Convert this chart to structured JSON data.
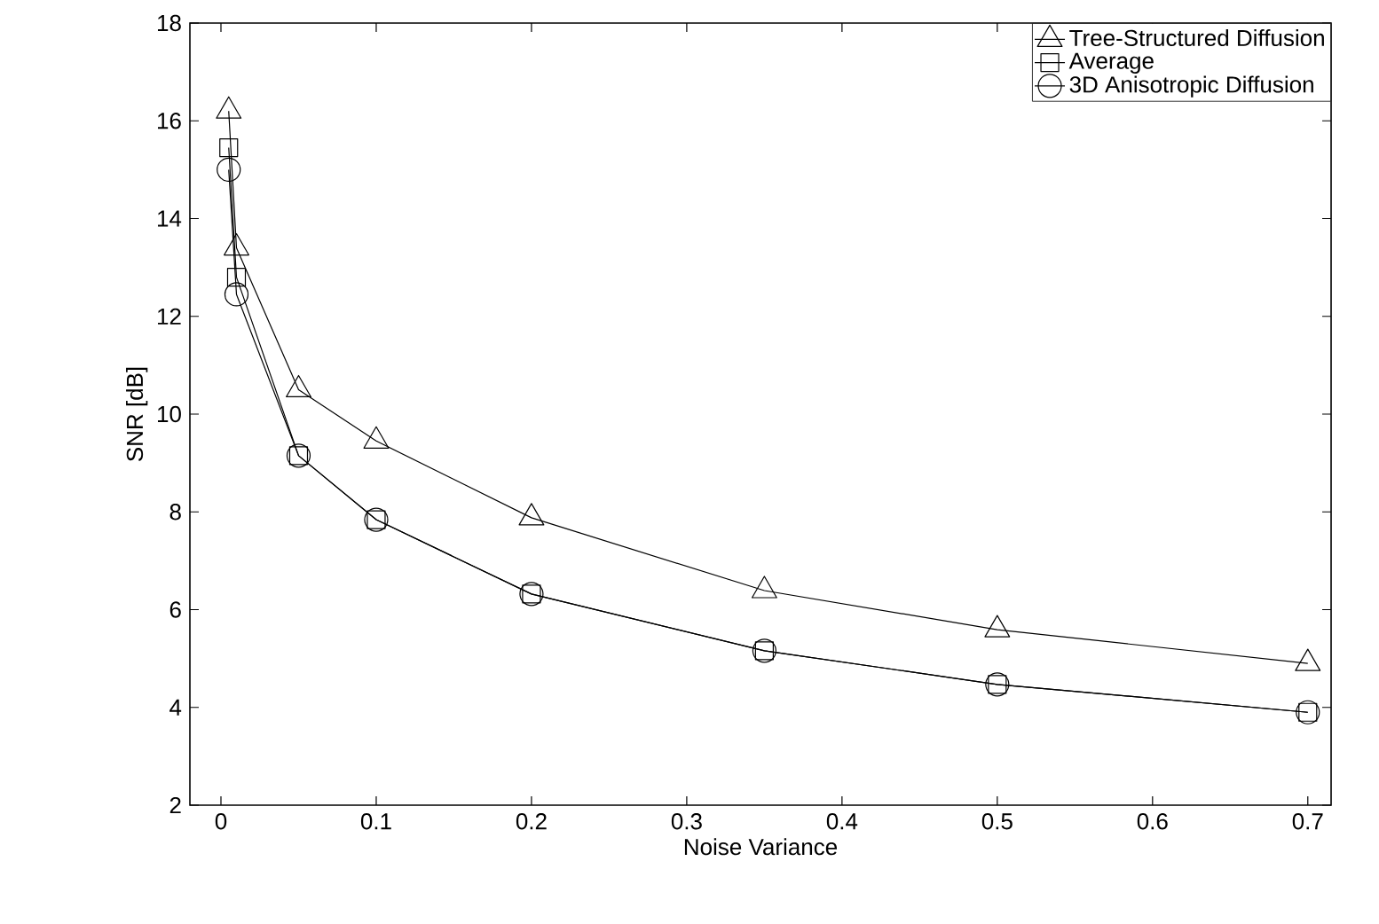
{
  "chart_data": {
    "type": "line",
    "xlabel": "Noise Variance",
    "ylabel": "SNR  [dB]",
    "x": [
      0.005,
      0.01,
      0.05,
      0.1,
      0.2,
      0.35,
      0.5,
      0.7
    ],
    "series": [
      {
        "name": "Tree-Structured Diffusion",
        "color": "#000000",
        "marker": "triangle",
        "values": [
          16.2,
          13.4,
          10.5,
          9.45,
          7.88,
          6.39,
          5.59,
          4.9
        ]
      },
      {
        "name": "Average",
        "color": "#000000",
        "marker": "square",
        "values": [
          15.45,
          12.8,
          9.15,
          7.84,
          6.32,
          5.16,
          4.47,
          3.9
        ]
      },
      {
        "name": "3D Anisotropic Diffusion",
        "color": "#000000",
        "marker": "circle",
        "values": [
          15.0,
          12.45,
          9.15,
          7.84,
          6.32,
          5.16,
          4.47,
          3.9
        ]
      }
    ],
    "xlim": [
      -0.02,
      0.715
    ],
    "ylim": [
      2,
      18
    ],
    "xticks": [
      0,
      0.1,
      0.2,
      0.3,
      0.4,
      0.5,
      0.6,
      0.7
    ],
    "yticks": [
      2,
      4,
      6,
      8,
      10,
      12,
      14,
      16,
      18
    ],
    "grid": false,
    "legend": "top right",
    "line_style": "solid"
  }
}
